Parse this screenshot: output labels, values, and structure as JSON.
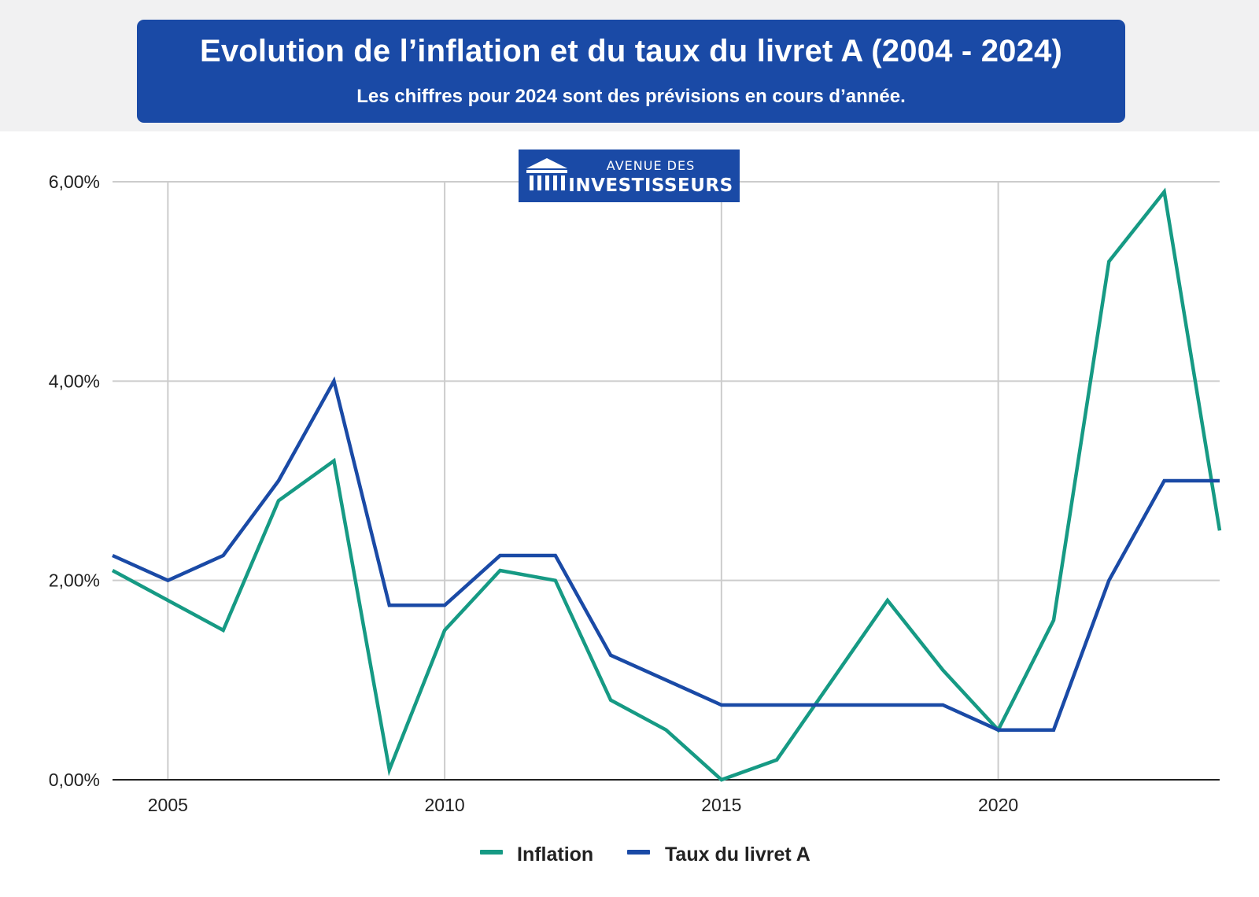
{
  "header": {
    "title": "Evolution de l’inflation et du taux du livret A (2004 - 2024)",
    "subtitle": "Les chiffres pour 2024 sont des prévisions en cours d’année."
  },
  "logo": {
    "line1": "AVENUE DES",
    "line2": "INVESTISSEURS",
    "icon": "bank-building-icon"
  },
  "colors": {
    "header_bg": "#1a4aa6",
    "inflation": "#169a84",
    "livret_a": "#1a4aa6",
    "grid": "#cccccc"
  },
  "chart_data": {
    "type": "line",
    "x": [
      2004,
      2005,
      2006,
      2007,
      2008,
      2009,
      2010,
      2011,
      2012,
      2013,
      2014,
      2015,
      2016,
      2017,
      2018,
      2019,
      2020,
      2021,
      2022,
      2023,
      2024
    ],
    "xlim": [
      2004,
      2024
    ],
    "ylim": [
      0,
      6
    ],
    "y_ticks": [
      0,
      2,
      4,
      6
    ],
    "y_tick_labels": [
      "0,00%",
      "2,00%",
      "4,00%",
      "6,00%"
    ],
    "x_ticks": [
      2005,
      2010,
      2015,
      2020
    ],
    "x_tick_labels": [
      "2005",
      "2010",
      "2015",
      "2020"
    ],
    "grid": true,
    "legend_position": "bottom-center",
    "series": [
      {
        "name": "Inflation",
        "color": "#169a84",
        "values": [
          2.1,
          1.8,
          1.5,
          2.8,
          3.2,
          0.1,
          1.5,
          2.1,
          2.0,
          0.8,
          0.5,
          0.0,
          0.2,
          1.0,
          1.8,
          1.1,
          0.5,
          1.6,
          5.2,
          5.9,
          2.5
        ]
      },
      {
        "name": "Taux du livret A",
        "color": "#1a4aa6",
        "values": [
          2.25,
          2.0,
          2.25,
          3.0,
          4.0,
          1.75,
          1.75,
          2.25,
          2.25,
          1.25,
          1.0,
          0.75,
          0.75,
          0.75,
          0.75,
          0.75,
          0.5,
          0.5,
          2.0,
          3.0,
          3.0
        ]
      }
    ]
  }
}
